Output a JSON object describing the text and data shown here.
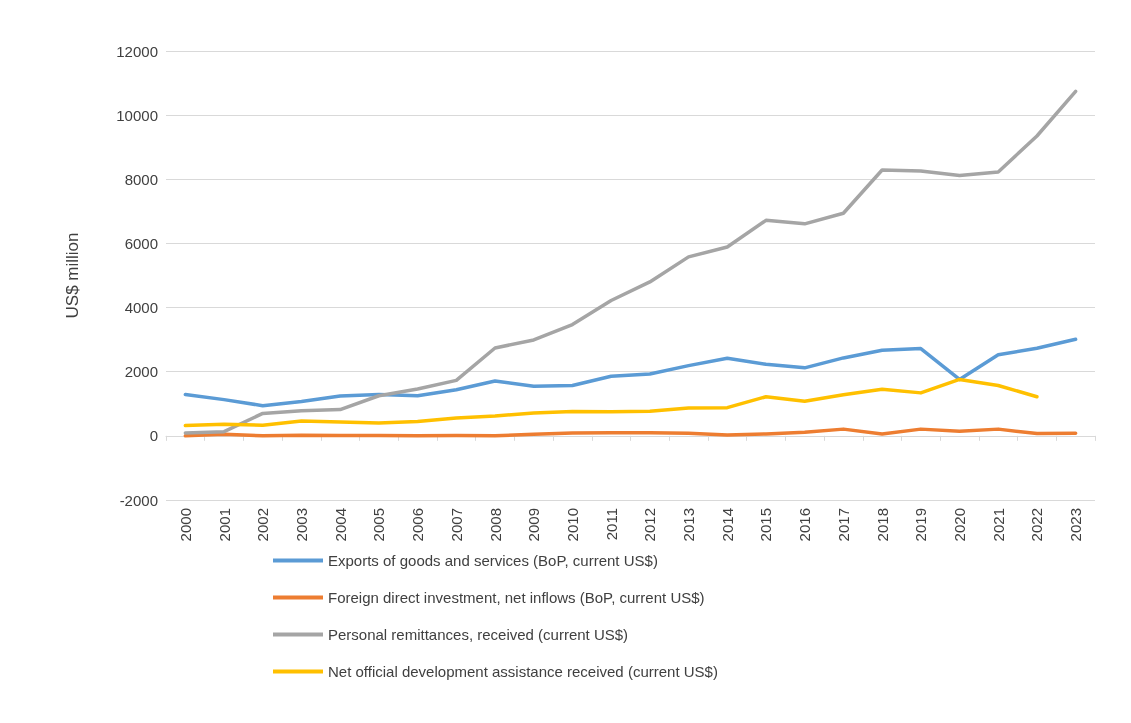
{
  "chart_data": {
    "type": "line",
    "ylabel": "US$ million",
    "categories": [
      "2000",
      "2001",
      "2002",
      "2003",
      "2004",
      "2005",
      "2006",
      "2007",
      "2008",
      "2009",
      "2010",
      "2011",
      "2012",
      "2013",
      "2014",
      "2015",
      "2016",
      "2017",
      "2018",
      "2019",
      "2020",
      "2021",
      "2022",
      "2023"
    ],
    "series": [
      {
        "name": "Exports of goods and services (BoP, current US$)",
        "color": "#5b9bd5",
        "values": [
          1290,
          1130,
          940,
          1070,
          1240,
          1290,
          1250,
          1440,
          1710,
          1550,
          1570,
          1860,
          1930,
          2190,
          2420,
          2230,
          2120,
          2430,
          2670,
          2720,
          1760,
          2530,
          2730,
          3010
        ]
      },
      {
        "name": "Foreign direct investment, net inflows (BoP, current US$)",
        "color": "#ed7d31",
        "values": [
          0,
          50,
          0,
          20,
          10,
          10,
          0,
          10,
          0,
          50,
          90,
          100,
          100,
          80,
          30,
          60,
          110,
          210,
          60,
          210,
          140,
          210,
          70,
          80
        ]
      },
      {
        "name": "Personal remittances, received (current US$)",
        "color": "#a5a5a5",
        "values": [
          90,
          130,
          700,
          780,
          820,
          1250,
          1460,
          1730,
          2740,
          2990,
          3470,
          4220,
          4800,
          5580,
          5890,
          6720,
          6610,
          6940,
          8290,
          8260,
          8120,
          8230,
          9350,
          10740
        ]
      },
      {
        "name": "Net official development assistance received (current US$)",
        "color": "#ffc000",
        "values": [
          320,
          360,
          330,
          460,
          430,
          400,
          450,
          560,
          620,
          710,
          760,
          750,
          770,
          870,
          880,
          1220,
          1080,
          1280,
          1450,
          1340,
          1760,
          1570,
          1220,
          null
        ]
      }
    ],
    "ylim": [
      -2000,
      12000
    ],
    "yticks": [
      -2000,
      0,
      2000,
      4000,
      6000,
      8000,
      10000,
      12000
    ],
    "grid": "y",
    "legend": "bottom",
    "marker": "none",
    "line_style": "solid"
  }
}
